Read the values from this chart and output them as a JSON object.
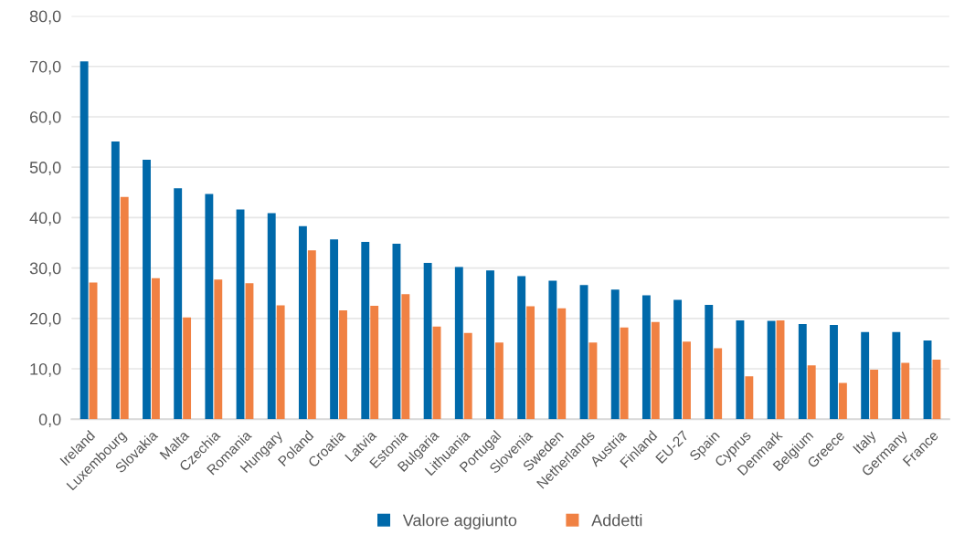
{
  "chart_data": {
    "type": "bar",
    "categories": [
      "Ireland",
      "Luxembourg",
      "Slovakia",
      "Malta",
      "Czechia",
      "Romania",
      "Hungary",
      "Poland",
      "Croatia",
      "Latvia",
      "Estonia",
      "Bulgaria",
      "Lithuania",
      "Portugal",
      "Slovenia",
      "Sweden",
      "Netherlands",
      "Austria",
      "Finland",
      "EU-27",
      "Spain",
      "Cyprus",
      "Denmark",
      "Belgium",
      "Greece",
      "Italy",
      "Germany",
      "France"
    ],
    "series": [
      {
        "name": "Valore aggiunto",
        "color": "#0069aa",
        "values": [
          71.0,
          55.1,
          51.5,
          45.8,
          44.7,
          41.6,
          40.9,
          38.3,
          35.7,
          35.2,
          34.8,
          31.0,
          30.2,
          29.5,
          28.4,
          27.5,
          26.6,
          25.7,
          24.6,
          23.7,
          22.7,
          19.6,
          19.5,
          18.9,
          18.7,
          17.3,
          17.3,
          15.6
        ]
      },
      {
        "name": "Addetti",
        "color": "#f08143",
        "values": [
          27.1,
          44.1,
          28.0,
          20.2,
          27.7,
          27.0,
          22.6,
          33.5,
          21.6,
          22.5,
          24.8,
          18.4,
          17.1,
          15.2,
          22.4,
          22.0,
          15.2,
          18.2,
          19.3,
          15.4,
          14.1,
          8.5,
          19.6,
          10.7,
          7.2,
          9.8,
          11.2,
          11.8
        ]
      }
    ],
    "ylim": [
      0,
      80
    ],
    "yticks": [
      {
        "value": 0,
        "label": "0,0"
      },
      {
        "value": 10,
        "label": "10,0"
      },
      {
        "value": 20,
        "label": "20,0"
      },
      {
        "value": 30,
        "label": "30,0"
      },
      {
        "value": 40,
        "label": "40,0"
      },
      {
        "value": 50,
        "label": "50,0"
      },
      {
        "value": 60,
        "label": "60,0"
      },
      {
        "value": 70,
        "label": "70,0"
      },
      {
        "value": 80,
        "label": "80,0"
      }
    ],
    "grid": "y",
    "legend": "bottom"
  }
}
